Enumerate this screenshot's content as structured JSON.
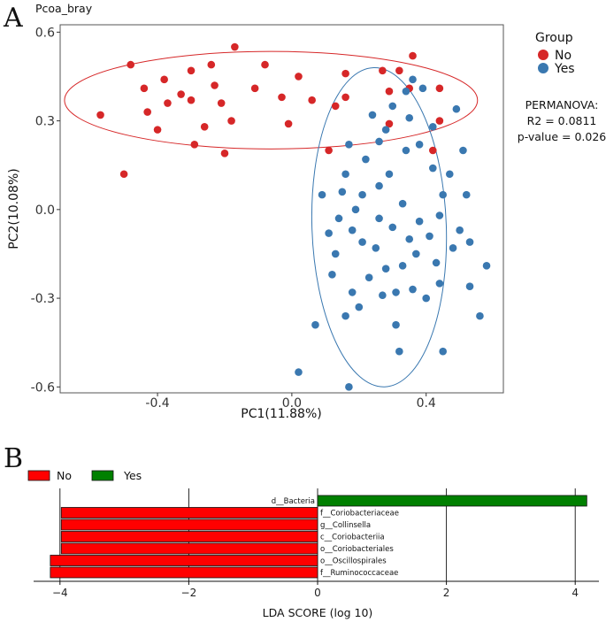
{
  "panels": {
    "a_label": "A",
    "b_label": "B"
  },
  "chart_data": [
    {
      "type": "scatter",
      "title": "Pcoa_bray",
      "xlabel": "PC1(11.88%)",
      "ylabel": "PC2(10.08%)",
      "xlim": [
        -0.69,
        0.63
      ],
      "ylim": [
        -0.62,
        0.625
      ],
      "xticks": [
        -0.4,
        0.0,
        0.4
      ],
      "xtick_labels": [
        "-0.4",
        "0.0",
        "0.4"
      ],
      "yticks": [
        0.6,
        0.3,
        0.0,
        -0.3,
        -0.6
      ],
      "ytick_labels": [
        "0.6",
        "0.3",
        "0.0",
        "-0.3",
        "-0.6"
      ],
      "grid": false,
      "legend": {
        "title": "Group",
        "position": "top-right"
      },
      "annotation": [
        "PERMANOVA:",
        "R2 = 0.0811",
        "p-value = 0.026"
      ],
      "series": [
        {
          "name": "No",
          "color": "#d62728",
          "ellipse": {
            "cx": -0.062,
            "cy": 0.37,
            "rx": 0.615,
            "ry": 0.165,
            "angle_deg": 0
          },
          "points": [
            [
              -0.57,
              0.32
            ],
            [
              -0.5,
              0.12
            ],
            [
              -0.48,
              0.49
            ],
            [
              -0.44,
              0.41
            ],
            [
              -0.43,
              0.33
            ],
            [
              -0.4,
              0.27
            ],
            [
              -0.38,
              0.44
            ],
            [
              -0.37,
              0.36
            ],
            [
              -0.33,
              0.39
            ],
            [
              -0.3,
              0.47
            ],
            [
              -0.3,
              0.37
            ],
            [
              -0.29,
              0.22
            ],
            [
              -0.26,
              0.28
            ],
            [
              -0.24,
              0.49
            ],
            [
              -0.23,
              0.42
            ],
            [
              -0.21,
              0.36
            ],
            [
              -0.2,
              0.19
            ],
            [
              -0.18,
              0.3
            ],
            [
              -0.17,
              0.55
            ],
            [
              -0.11,
              0.41
            ],
            [
              -0.08,
              0.49
            ],
            [
              -0.03,
              0.38
            ],
            [
              -0.01,
              0.29
            ],
            [
              0.02,
              0.45
            ],
            [
              0.06,
              0.37
            ],
            [
              0.11,
              0.2
            ],
            [
              0.13,
              0.35
            ],
            [
              0.16,
              0.46
            ],
            [
              0.16,
              0.38
            ],
            [
              0.27,
              0.47
            ],
            [
              0.29,
              0.29
            ],
            [
              0.29,
              0.4
            ],
            [
              0.32,
              0.47
            ],
            [
              0.35,
              0.41
            ],
            [
              0.36,
              0.52
            ],
            [
              0.42,
              0.2
            ],
            [
              0.44,
              0.3
            ],
            [
              0.44,
              0.41
            ]
          ]
        },
        {
          "name": "Yes",
          "color": "#3a78b0",
          "ellipse": {
            "cx": 0.26,
            "cy": -0.06,
            "rx": 0.2,
            "ry": 0.54,
            "angle_deg": -2
          },
          "points": [
            [
              0.02,
              -0.55
            ],
            [
              0.07,
              -0.39
            ],
            [
              0.09,
              0.05
            ],
            [
              0.11,
              -0.08
            ],
            [
              0.12,
              -0.22
            ],
            [
              0.13,
              -0.15
            ],
            [
              0.14,
              -0.03
            ],
            [
              0.15,
              0.06
            ],
            [
              0.16,
              0.12
            ],
            [
              0.16,
              -0.36
            ],
            [
              0.17,
              -0.6
            ],
            [
              0.17,
              0.22
            ],
            [
              0.18,
              -0.07
            ],
            [
              0.18,
              -0.28
            ],
            [
              0.19,
              0.0
            ],
            [
              0.2,
              -0.33
            ],
            [
              0.21,
              0.05
            ],
            [
              0.21,
              -0.11
            ],
            [
              0.22,
              0.17
            ],
            [
              0.23,
              -0.23
            ],
            [
              0.24,
              0.32
            ],
            [
              0.25,
              -0.13
            ],
            [
              0.26,
              0.08
            ],
            [
              0.26,
              -0.03
            ],
            [
              0.26,
              0.23
            ],
            [
              0.27,
              -0.29
            ],
            [
              0.28,
              -0.2
            ],
            [
              0.28,
              0.27
            ],
            [
              0.29,
              0.12
            ],
            [
              0.3,
              -0.06
            ],
            [
              0.3,
              0.35
            ],
            [
              0.31,
              -0.28
            ],
            [
              0.31,
              -0.39
            ],
            [
              0.32,
              -0.48
            ],
            [
              0.33,
              0.02
            ],
            [
              0.33,
              -0.19
            ],
            [
              0.34,
              0.2
            ],
            [
              0.34,
              0.4
            ],
            [
              0.35,
              -0.1
            ],
            [
              0.35,
              0.31
            ],
            [
              0.36,
              -0.27
            ],
            [
              0.37,
              -0.15
            ],
            [
              0.38,
              0.22
            ],
            [
              0.38,
              -0.04
            ],
            [
              0.39,
              0.41
            ],
            [
              0.4,
              -0.3
            ],
            [
              0.41,
              -0.09
            ],
            [
              0.42,
              0.14
            ],
            [
              0.42,
              0.28
            ],
            [
              0.43,
              -0.18
            ],
            [
              0.44,
              -0.02
            ],
            [
              0.44,
              -0.25
            ],
            [
              0.45,
              0.05
            ],
            [
              0.45,
              -0.48
            ],
            [
              0.47,
              0.12
            ],
            [
              0.48,
              -0.13
            ],
            [
              0.49,
              0.34
            ],
            [
              0.5,
              -0.07
            ],
            [
              0.51,
              0.2
            ],
            [
              0.52,
              0.05
            ],
            [
              0.53,
              -0.26
            ],
            [
              0.53,
              -0.11
            ],
            [
              0.56,
              -0.36
            ],
            [
              0.58,
              -0.19
            ],
            [
              0.36,
              0.44
            ]
          ]
        }
      ]
    },
    {
      "type": "bar",
      "orientation": "horizontal",
      "xlabel": "LDA SCORE (log 10)",
      "xlim": [
        -4.2,
        4.2
      ],
      "xticks": [
        -4,
        -2,
        0,
        2,
        4
      ],
      "xtick_labels": [
        "−4",
        "−2",
        "0",
        "2",
        "4"
      ],
      "grid": true,
      "legend": {
        "position": "top-left",
        "entries": [
          {
            "name": "No",
            "color": "#ff0000"
          },
          {
            "name": "Yes",
            "color": "#008000"
          }
        ]
      },
      "categories": [
        "d__Bacteria",
        "f__Coriobacteriaceae",
        "g__Collinsella",
        "c__Coriobacteriia",
        "o__Coriobacteriales",
        "o__Oscillospirales",
        "f__Ruminococcaceae"
      ],
      "values": [
        4.18,
        -3.98,
        -3.98,
        -3.98,
        -3.98,
        -4.15,
        -4.15
      ],
      "groups": [
        "Yes",
        "No",
        "No",
        "No",
        "No",
        "No",
        "No"
      ]
    }
  ]
}
